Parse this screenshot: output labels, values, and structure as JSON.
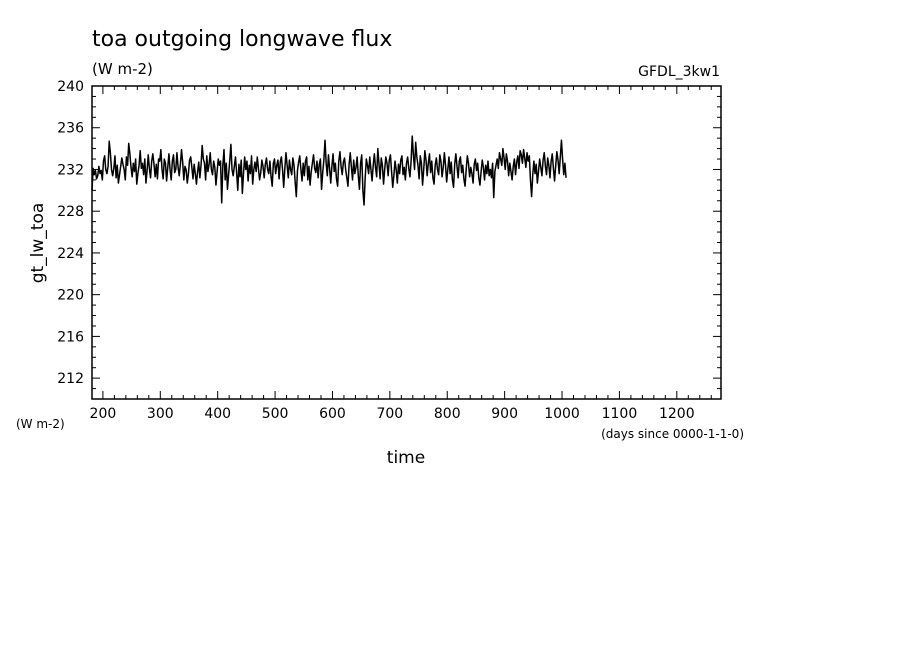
{
  "chart_data": {
    "type": "line",
    "title": "toa outgoing longwave flux",
    "units": "(W m-2)",
    "dataset": "GFDL_3kw1",
    "xlabel": "time",
    "xunits": "(days since 0000-1-1-0)",
    "ylabel": "gt_lw_toa",
    "yunits": "(W m-2)",
    "xlim": [
      181,
      1277
    ],
    "ylim": [
      210,
      240
    ],
    "xticks": [
      200,
      300,
      400,
      500,
      600,
      700,
      800,
      900,
      1000,
      1100,
      1200
    ],
    "yticks": [
      212,
      216,
      220,
      224,
      228,
      232,
      236,
      240
    ],
    "grid": false,
    "series": [
      {
        "x_start": 181,
        "x_step": 2,
        "values": [
          230.0,
          232.1,
          231.5,
          231.9,
          231.1,
          231.4,
          232.3,
          231.6,
          231.9,
          231.0,
          232.8,
          233.3,
          232.0,
          231.6,
          232.3,
          234.7,
          233.6,
          232.0,
          231.4,
          232.1,
          233.3,
          231.2,
          232.4,
          230.7,
          231.5,
          232.3,
          233.1,
          232.5,
          232.0,
          231.0,
          233.2,
          232.4,
          234.5,
          233.5,
          232.2,
          231.3,
          232.6,
          231.8,
          233.0,
          230.6,
          231.6,
          232.4,
          233.8,
          232.1,
          232.6,
          231.5,
          233.0,
          230.7,
          231.9,
          233.4,
          232.1,
          231.2,
          232.8,
          233.5,
          232.5,
          231.3,
          232.5,
          231.1,
          233.0,
          232.8,
          233.9,
          232.0,
          231.1,
          233.0,
          232.6,
          230.9,
          232.2,
          233.5,
          232.0,
          231.0,
          232.8,
          233.4,
          231.7,
          232.0,
          233.6,
          232.2,
          231.4,
          232.5,
          233.9,
          232.7,
          231.0,
          232.3,
          232.0,
          230.7,
          231.6,
          232.9,
          233.2,
          232.2,
          231.1,
          232.5,
          231.6,
          230.6,
          231.8,
          232.7,
          231.2,
          232.4,
          234.3,
          233.0,
          232.6,
          231.0,
          233.3,
          231.8,
          232.5,
          233.6,
          232.0,
          231.5,
          232.8,
          232.2,
          230.5,
          231.8,
          233.0,
          232.4,
          232.8,
          228.8,
          232.4,
          233.9,
          231.0,
          232.6,
          230.1,
          231.5,
          232.8,
          234.4,
          232.0,
          231.4,
          232.3,
          233.2,
          231.7,
          230.0,
          232.5,
          231.3,
          232.9,
          229.7,
          231.6,
          233.2,
          232.0,
          232.8,
          230.9,
          232.4,
          231.6,
          233.3,
          230.6,
          232.0,
          232.7,
          231.8,
          233.2,
          232.1,
          231.0,
          231.7,
          232.9,
          232.3,
          231.2,
          232.5,
          233.1,
          232.0,
          231.6,
          232.8,
          231.3,
          230.4,
          232.6,
          233.0,
          231.6,
          232.4,
          232.9,
          231.1,
          232.7,
          233.2,
          232.0,
          230.3,
          232.1,
          233.6,
          232.4,
          231.2,
          232.9,
          232.0,
          231.5,
          233.1,
          232.4,
          230.8,
          229.4,
          231.9,
          232.7,
          233.3,
          232.0,
          230.9,
          232.6,
          231.4,
          232.8,
          233.2,
          231.0,
          232.3,
          230.5,
          231.8,
          232.6,
          233.4,
          232.1,
          231.7,
          232.8,
          231.2,
          232.5,
          233.0,
          230.1,
          231.7,
          232.9,
          234.8,
          232.6,
          231.4,
          233.4,
          232.1,
          230.7,
          232.3,
          233.5,
          231.8,
          232.6,
          231.1,
          230.4,
          232.8,
          233.7,
          232.3,
          231.5,
          232.7,
          233.1,
          232.0,
          231.2,
          230.4,
          232.5,
          233.6,
          232.2,
          231.0,
          232.9,
          231.6,
          232.2,
          233.2,
          231.4,
          230.1,
          232.6,
          233.4,
          230.0,
          228.6,
          231.2,
          233.0,
          232.4,
          231.6,
          233.2,
          232.0,
          230.9,
          232.4,
          233.5,
          232.2,
          231.3,
          234.0,
          232.6,
          231.1,
          233.1,
          232.4,
          230.6,
          232.0,
          233.2,
          232.6,
          231.4,
          232.9,
          233.4,
          231.8,
          230.3,
          231.4,
          232.8,
          232.0,
          230.7,
          232.5,
          231.6,
          232.9,
          233.3,
          231.5,
          232.2,
          231.0,
          232.6,
          233.2,
          232.1,
          231.3,
          232.8,
          235.2,
          233.4,
          232.0,
          234.6,
          233.2,
          232.4,
          231.1,
          233.3,
          232.6,
          230.5,
          232.0,
          233.8,
          232.9,
          231.4,
          232.6,
          233.5,
          231.7,
          232.8,
          231.2,
          230.6,
          232.4,
          233.1,
          232.0,
          231.5,
          233.4,
          232.8,
          231.3,
          232.2,
          233.6,
          232.4,
          230.8,
          232.0,
          233.2,
          231.6,
          232.7,
          231.0,
          230.3,
          232.5,
          233.5,
          232.3,
          231.2,
          232.8,
          233.2,
          231.7,
          232.4,
          231.1,
          230.4,
          232.0,
          233.3,
          232.6,
          231.3,
          232.2,
          231.6,
          230.7,
          232.5,
          233.0,
          231.9,
          232.6,
          231.2,
          230.5,
          231.8,
          232.9,
          232.2,
          231.0,
          232.4,
          231.6,
          232.8,
          231.4,
          232.0,
          231.2,
          232.6,
          229.3,
          231.8,
          232.4,
          233.0,
          232.1,
          233.6,
          233.0,
          232.4,
          234.0,
          233.1,
          232.0,
          233.5,
          232.8,
          231.4,
          232.6,
          231.8,
          231.0,
          232.3,
          233.0,
          231.5,
          232.7,
          233.3,
          232.1,
          233.8,
          233.4,
          232.6,
          233.9,
          233.1,
          232.2,
          233.6,
          232.8,
          233.3,
          231.0,
          229.4,
          231.5,
          232.8,
          231.6,
          232.5,
          230.7,
          231.8,
          233.0,
          232.2,
          231.4,
          232.9,
          233.6,
          232.3,
          231.5,
          233.1,
          232.4,
          231.2,
          232.8,
          233.5,
          232.1,
          230.9,
          232.4,
          233.7,
          232.9,
          231.6,
          233.2,
          234.8,
          233.0,
          231.5,
          232.6,
          231.2
        ]
      }
    ]
  }
}
